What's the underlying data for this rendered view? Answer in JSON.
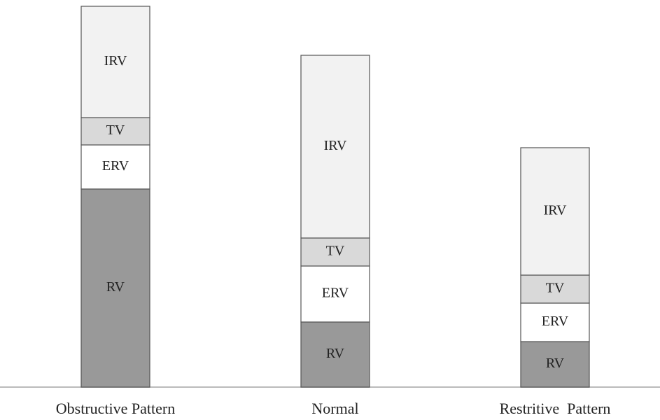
{
  "chart_data": {
    "type": "stacked_bar",
    "categories": [
      "Obstructive Pattern",
      "Normal",
      "Restritive  Pattern"
    ],
    "series": [
      {
        "name": "RV",
        "color": "#999999",
        "values": [
          283,
          93,
          65
        ]
      },
      {
        "name": "ERV",
        "color": "#ffffff",
        "values": [
          63,
          80,
          55
        ]
      },
      {
        "name": "TV",
        "color": "#d9d9d9",
        "values": [
          39,
          40,
          40
        ]
      },
      {
        "name": "IRV",
        "color": "#f2f2f2",
        "values": [
          159,
          261,
          182
        ]
      }
    ],
    "ylim": [
      0,
      553
    ]
  }
}
